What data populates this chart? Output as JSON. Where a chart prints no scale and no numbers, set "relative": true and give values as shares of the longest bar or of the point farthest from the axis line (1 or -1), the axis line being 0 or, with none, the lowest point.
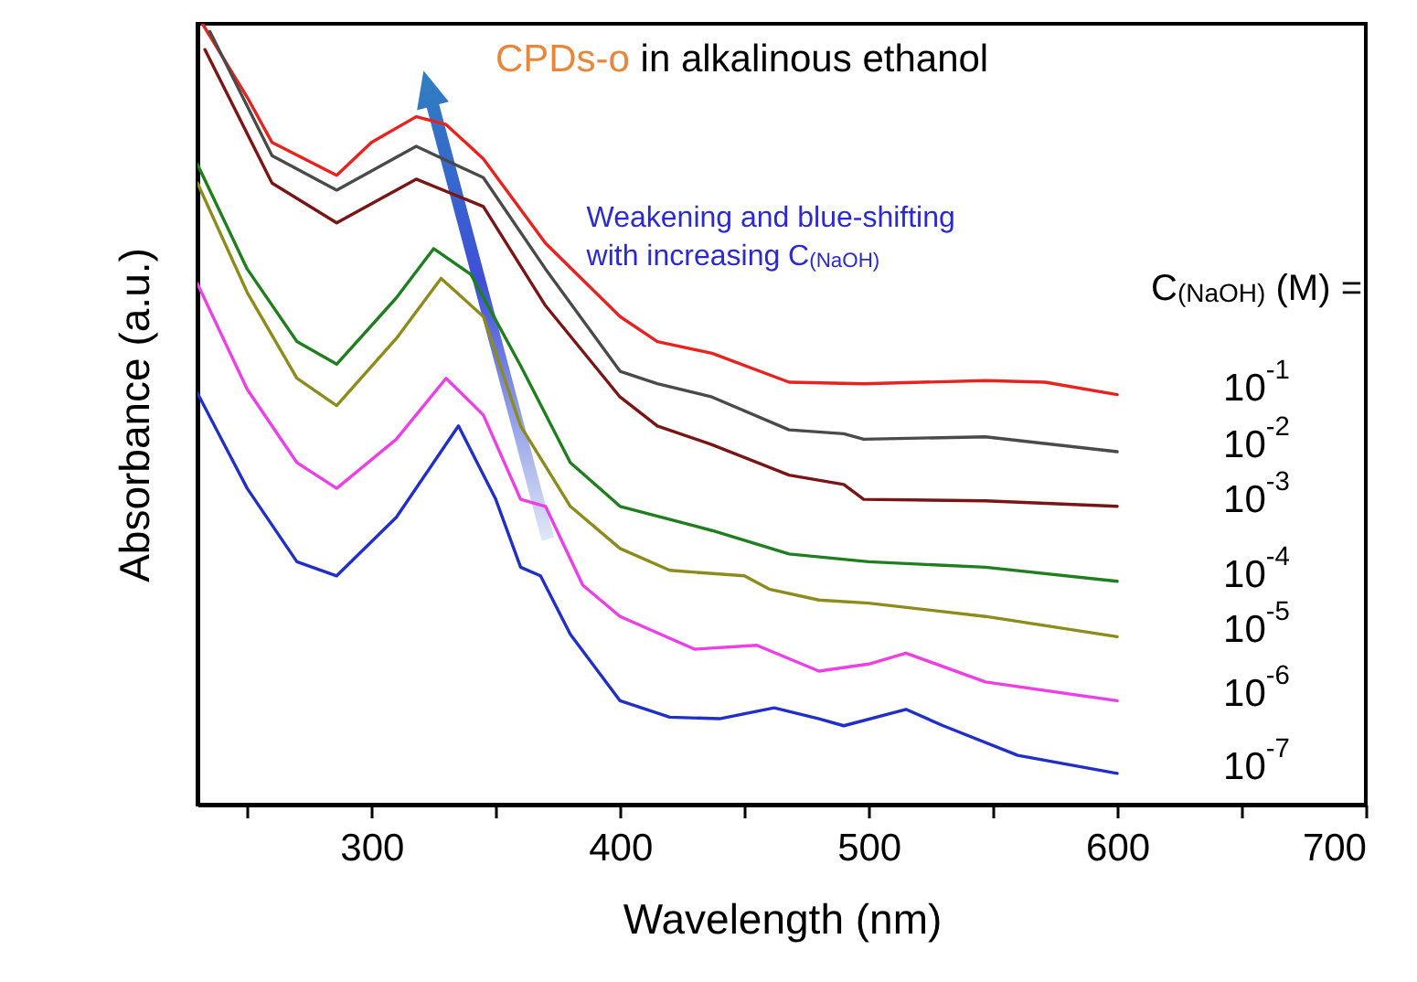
{
  "chart_data": {
    "type": "line",
    "title": "CPDs-o in alkalinous ethanol",
    "xlabel": "Wavelength (nm)",
    "ylabel": "Absorbance (a.u.)",
    "legend_title": "C$_{(NaOH)}$ (M) =",
    "annotations": [
      "Weakening and blue-shifting with increasing C$_{(NaOH)}$"
    ],
    "relative": true,
    "xlim": [
      230,
      700
    ],
    "xticks": [
      {
        "value": 250,
        "label": null
      },
      300,
      {
        "value": 350,
        "label": null
      },
      400,
      {
        "value": 450,
        "label": null
      },
      500,
      {
        "value": 550,
        "label": null
      },
      600,
      {
        "value": 650,
        "label": null
      },
      700
    ],
    "line_style": "solid",
    "series": [
      {
        "name": "10$^{-1}$",
        "color": "#e8231f",
        "x": [
          232,
          250,
          260,
          286,
          300,
          318,
          330,
          345,
          370,
          400,
          415,
          437,
          468,
          498,
          547,
          571,
          600
        ],
        "values": [
          1.0,
          0.906,
          0.848,
          0.806,
          0.848,
          0.881,
          0.871,
          0.827,
          0.719,
          0.625,
          0.593,
          0.578,
          0.541,
          0.539,
          0.543,
          0.541,
          0.525
        ]
      },
      {
        "name": "10$^{-2}$",
        "color": "#4a4a4a",
        "x": [
          235,
          260,
          286,
          318,
          345,
          370,
          400,
          415,
          437,
          468,
          490,
          498,
          547,
          600
        ],
        "values": [
          0.99,
          0.831,
          0.787,
          0.843,
          0.803,
          0.686,
          0.555,
          0.539,
          0.522,
          0.48,
          0.475,
          0.468,
          0.471,
          0.452
        ]
      },
      {
        "name": "10$^{-3}$",
        "color": "#7a1515",
        "x": [
          233,
          260,
          286,
          318,
          345,
          370,
          400,
          415,
          437,
          468,
          490,
          498,
          547,
          600
        ],
        "values": [
          0.967,
          0.796,
          0.745,
          0.801,
          0.766,
          0.639,
          0.522,
          0.485,
          0.461,
          0.422,
          0.41,
          0.391,
          0.389,
          0.382
        ]
      },
      {
        "name": "10$^{-4}$",
        "color": "#1f7f1f",
        "x": [
          230,
          250,
          270,
          286,
          310,
          325,
          340,
          360,
          380,
          400,
          437,
          468,
          500,
          547,
          600
        ],
        "values": [
          0.82,
          0.686,
          0.593,
          0.564,
          0.649,
          0.712,
          0.679,
          0.562,
          0.438,
          0.382,
          0.351,
          0.321,
          0.311,
          0.304,
          0.286
        ]
      },
      {
        "name": "10$^{-5}$",
        "color": "#8c8c1c",
        "x": [
          230,
          250,
          270,
          286,
          310,
          328,
          345,
          360,
          380,
          400,
          420,
          450,
          460,
          480,
          500,
          547,
          600
        ],
        "values": [
          0.796,
          0.656,
          0.546,
          0.511,
          0.597,
          0.674,
          0.625,
          0.485,
          0.382,
          0.328,
          0.3,
          0.293,
          0.276,
          0.262,
          0.258,
          0.241,
          0.215
        ]
      },
      {
        "name": "10$^{-6}$",
        "color": "#ee3fe6",
        "x": [
          230,
          250,
          270,
          286,
          310,
          330,
          345,
          360,
          370,
          385,
          400,
          430,
          455,
          480,
          500,
          515,
          547,
          600
        ],
        "values": [
          0.667,
          0.532,
          0.438,
          0.405,
          0.468,
          0.546,
          0.499,
          0.391,
          0.382,
          0.281,
          0.241,
          0.199,
          0.204,
          0.171,
          0.18,
          0.194,
          0.157,
          0.133
        ]
      },
      {
        "name": "10$^{-7}$",
        "color": "#1f2fc8",
        "x": [
          230,
          250,
          270,
          286,
          310,
          335,
          350,
          360,
          368,
          380,
          400,
          420,
          440,
          462,
          480,
          490,
          515,
          530,
          560,
          600
        ],
        "values": [
          0.527,
          0.405,
          0.311,
          0.293,
          0.368,
          0.485,
          0.391,
          0.304,
          0.293,
          0.218,
          0.133,
          0.112,
          0.11,
          0.124,
          0.11,
          0.101,
          0.122,
          0.101,
          0.063,
          0.04
        ]
      }
    ]
  }
}
